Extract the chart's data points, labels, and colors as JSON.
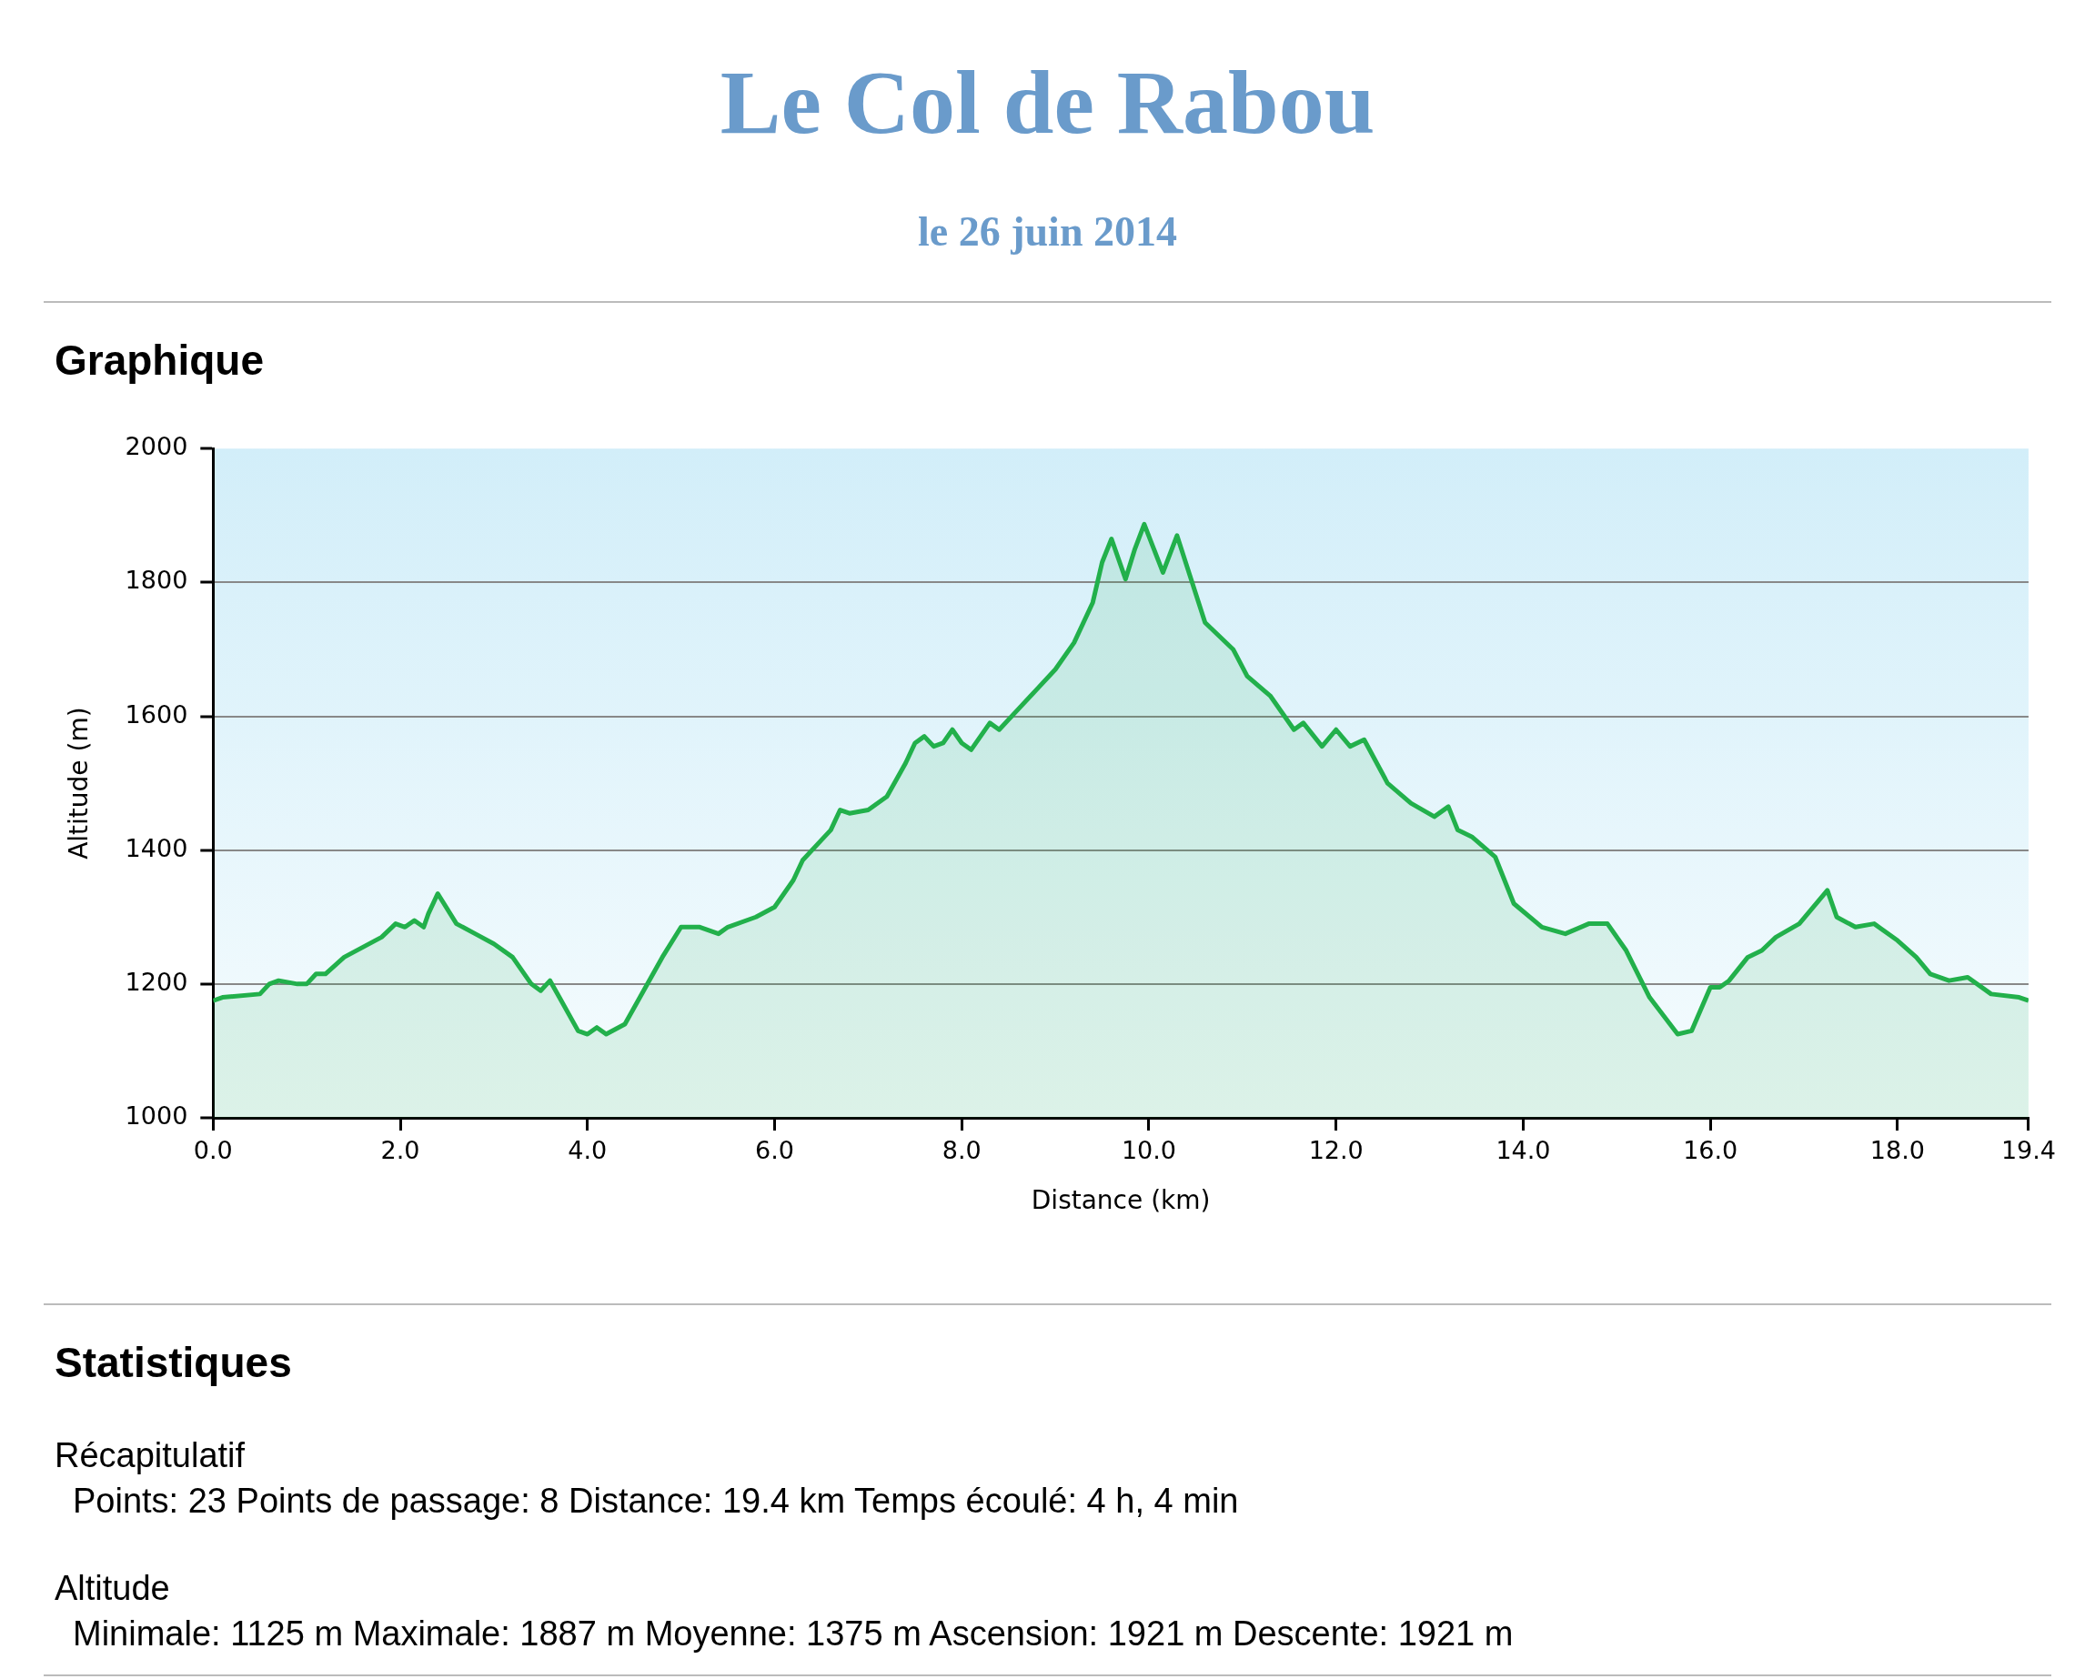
{
  "chart_data": {
    "type": "area",
    "title": "Le Col de Rabou",
    "subtitle": "le 26 juin 2014",
    "xlabel": "Distance (km)",
    "ylabel": "Altitude (m)",
    "x": [
      0,
      0.1,
      0.5,
      0.6,
      0.7,
      0.9,
      1.0,
      1.1,
      1.2,
      1.4,
      1.6,
      1.8,
      1.95,
      2.05,
      2.15,
      2.25,
      2.3,
      2.4,
      2.6,
      2.8,
      3.0,
      3.2,
      3.4,
      3.5,
      3.6,
      3.7,
      3.9,
      4.0,
      4.1,
      4.2,
      4.4,
      4.6,
      4.8,
      5.0,
      5.2,
      5.4,
      5.5,
      5.8,
      6.0,
      6.2,
      6.3,
      6.5,
      6.6,
      6.7,
      6.8,
      7.0,
      7.2,
      7.4,
      7.5,
      7.6,
      7.7,
      7.8,
      7.9,
      8.0,
      8.1,
      8.3,
      8.4,
      8.6,
      8.8,
      9.0,
      9.2,
      9.4,
      9.5,
      9.6,
      9.75,
      9.85,
      9.95,
      10.15,
      10.3,
      10.6,
      10.9,
      11.05,
      11.3,
      11.55,
      11.65,
      11.85,
      12.0,
      12.15,
      12.3,
      12.55,
      12.8,
      13.05,
      13.2,
      13.3,
      13.45,
      13.7,
      13.9,
      14.2,
      14.45,
      14.7,
      14.9,
      15.1,
      15.35,
      15.65,
      15.8,
      16.0,
      16.1,
      16.2,
      16.4,
      16.55,
      16.7,
      16.95,
      17.25,
      17.35,
      17.55,
      17.75,
      18.0,
      18.2,
      18.35,
      18.55,
      18.75,
      19.0,
      19.3,
      19.4
    ],
    "series": [
      {
        "color": "#22b04b",
        "values": [
          1175,
          1180,
          1185,
          1200,
          1205,
          1200,
          1200,
          1215,
          1215,
          1240,
          1255,
          1270,
          1290,
          1285,
          1295,
          1285,
          1305,
          1335,
          1290,
          1275,
          1260,
          1240,
          1200,
          1190,
          1205,
          1180,
          1130,
          1125,
          1135,
          1125,
          1140,
          1190,
          1240,
          1285,
          1285,
          1275,
          1285,
          1300,
          1315,
          1355,
          1385,
          1415,
          1430,
          1460,
          1455,
          1460,
          1480,
          1530,
          1560,
          1570,
          1555,
          1560,
          1580,
          1560,
          1550,
          1590,
          1580,
          1610,
          1640,
          1670,
          1710,
          1770,
          1830,
          1865,
          1805,
          1850,
          1887,
          1815,
          1870,
          1740,
          1700,
          1660,
          1630,
          1580,
          1590,
          1555,
          1580,
          1555,
          1565,
          1500,
          1470,
          1450,
          1465,
          1430,
          1420,
          1390,
          1320,
          1285,
          1275,
          1290,
          1290,
          1250,
          1180,
          1125,
          1130,
          1195,
          1195,
          1205,
          1240,
          1250,
          1270,
          1290,
          1340,
          1300,
          1285,
          1290,
          1265,
          1240,
          1215,
          1205,
          1210,
          1185,
          1180,
          1175
        ]
      }
    ],
    "xlim": [
      0,
      19.4
    ],
    "xticks": [
      {
        "value": 0,
        "label": "0.0"
      },
      {
        "value": 2,
        "label": "2.0"
      },
      {
        "value": 4,
        "label": "4.0"
      },
      {
        "value": 6,
        "label": "6.0"
      },
      {
        "value": 8,
        "label": "8.0"
      },
      {
        "value": 10,
        "label": "10.0"
      },
      {
        "value": 12,
        "label": "12.0"
      },
      {
        "value": 14,
        "label": "14.0"
      },
      {
        "value": 16,
        "label": "16.0"
      },
      {
        "value": 18,
        "label": "18.0"
      },
      19.4
    ],
    "ylim": [
      1000,
      2000
    ],
    "yticks": [
      1000,
      1200,
      1400,
      1600,
      1800,
      2000
    ],
    "grid": "y",
    "legend": false,
    "marker": "none",
    "line_style": "solid",
    "annotations": [
      "Graphique",
      "Statistiques",
      "Récapitulatif",
      "Points: 23  Points de passage: 8  Distance: 19.4 km  Temps écoulé: 4 h, 4 min",
      "Altitude",
      "Minimale: 1125 m  Maximale: 1887 m  Moyenne: 1375 m  Ascension: 1921 m  Descente: 1921 m"
    ]
  }
}
